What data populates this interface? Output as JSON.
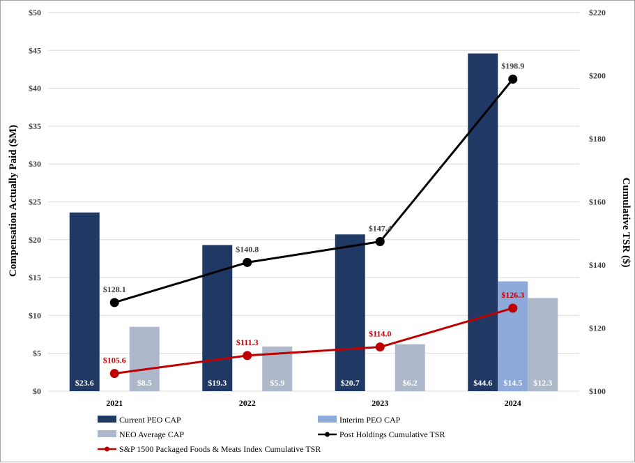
{
  "chart_data": {
    "type": "bar",
    "categories": [
      "2021",
      "2022",
      "2023",
      "2024"
    ],
    "left_axis": {
      "title": "Compensation Actually Paid ($M)",
      "range": [
        0,
        50
      ],
      "ticks": [
        "$0",
        "$5",
        "$10",
        "$15",
        "$20",
        "$25",
        "$30",
        "$35",
        "$40",
        "$45",
        "$50"
      ]
    },
    "right_axis": {
      "title": "Cumulative TSR ($)",
      "range": [
        100,
        220
      ],
      "ticks": [
        "$100",
        "$120",
        "$140",
        "$160",
        "$180",
        "$200",
        "$220"
      ]
    },
    "grid": true,
    "legend_position": "bottom",
    "bar_series": [
      {
        "name": "Current PEO CAP",
        "color": "#1f3864",
        "values": [
          23.6,
          19.3,
          20.7,
          44.6
        ],
        "labels": [
          "$23.6",
          "$19.3",
          "$20.7",
          "$44.6"
        ]
      },
      {
        "name": "Interim PEO CAP",
        "color": "#8eaadb",
        "values": [
          null,
          null,
          null,
          14.5
        ],
        "labels": [
          "",
          "",
          "",
          "$14.5"
        ]
      },
      {
        "name": "NEO Average CAP",
        "color": "#adb9ca",
        "values": [
          8.5,
          5.9,
          6.2,
          12.3
        ],
        "labels": [
          "$8.5",
          "$5.9",
          "$6.2",
          "$12.3"
        ]
      }
    ],
    "line_series": [
      {
        "name": "Post Holdings Cumulative TSR",
        "color": "#000000",
        "axis": "right",
        "values": [
          128.1,
          140.8,
          147.4,
          198.9
        ],
        "labels": [
          "$128.1",
          "$140.8",
          "$147.4",
          "$198.9"
        ]
      },
      {
        "name": "S&P 1500 Packaged Foods & Meats Index Cumulative TSR",
        "color": "#c00000",
        "axis": "right",
        "values": [
          105.6,
          111.3,
          114.0,
          126.3
        ],
        "labels": [
          "$105.6",
          "$111.3",
          "$114.0",
          "$126.3"
        ]
      }
    ]
  }
}
